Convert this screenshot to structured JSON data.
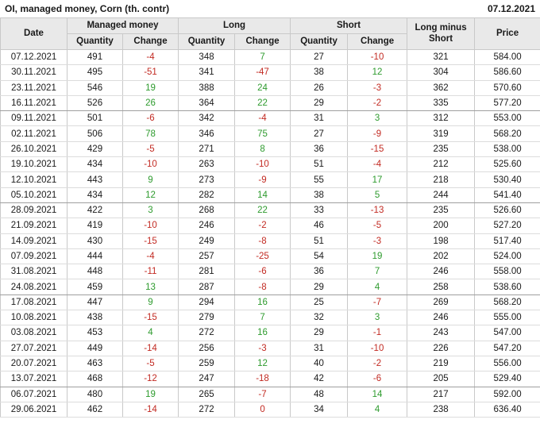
{
  "title": "OI, managed money, Corn (th. contr)",
  "report_date": "07.12.2021",
  "colors": {
    "positive_change": "#2e9b2e",
    "negative_change": "#c22a22",
    "header_background": "#e9e9e9",
    "grid_line": "#c9c9c9",
    "row_line": "#dcdcdc",
    "group_line": "#9f9f9f"
  },
  "table": {
    "header": {
      "date": "Date",
      "managed_money": "Managed money",
      "long": "Long",
      "short": "Short",
      "quantity": "Quantity",
      "change": "Change",
      "long_minus_short": "Long minus Short",
      "price": "Price"
    },
    "group_separators_after": [
      3,
      9,
      15,
      21
    ]
  },
  "chart_data": {
    "type": "table",
    "title": "OI, managed money, Corn (th. contr)",
    "columns": [
      "Date",
      "Managed money Quantity",
      "Managed money Change",
      "Long Quantity",
      "Long Change",
      "Short Quantity",
      "Short Change",
      "Long minus Short",
      "Price"
    ],
    "rows": [
      [
        "07.12.2021",
        "491",
        "-4",
        "348",
        "7",
        "27",
        "-10",
        "321",
        "584.00"
      ],
      [
        "30.11.2021",
        "495",
        "-51",
        "341",
        "-47",
        "38",
        "12",
        "304",
        "586.60"
      ],
      [
        "23.11.2021",
        "546",
        "19",
        "388",
        "24",
        "26",
        "-3",
        "362",
        "570.60"
      ],
      [
        "16.11.2021",
        "526",
        "26",
        "364",
        "22",
        "29",
        "-2",
        "335",
        "577.20"
      ],
      [
        "09.11.2021",
        "501",
        "-6",
        "342",
        "-4",
        "31",
        "3",
        "312",
        "553.00"
      ],
      [
        "02.11.2021",
        "506",
        "78",
        "346",
        "75",
        "27",
        "-9",
        "319",
        "568.20"
      ],
      [
        "26.10.2021",
        "429",
        "-5",
        "271",
        "8",
        "36",
        "-15",
        "235",
        "538.00"
      ],
      [
        "19.10.2021",
        "434",
        "-10",
        "263",
        "-10",
        "51",
        "-4",
        "212",
        "525.60"
      ],
      [
        "12.10.2021",
        "443",
        "9",
        "273",
        "-9",
        "55",
        "17",
        "218",
        "530.40"
      ],
      [
        "05.10.2021",
        "434",
        "12",
        "282",
        "14",
        "38",
        "5",
        "244",
        "541.40"
      ],
      [
        "28.09.2021",
        "422",
        "3",
        "268",
        "22",
        "33",
        "-13",
        "235",
        "526.60"
      ],
      [
        "21.09.2021",
        "419",
        "-10",
        "246",
        "-2",
        "46",
        "-5",
        "200",
        "527.20"
      ],
      [
        "14.09.2021",
        "430",
        "-15",
        "249",
        "-8",
        "51",
        "-3",
        "198",
        "517.40"
      ],
      [
        "07.09.2021",
        "444",
        "-4",
        "257",
        "-25",
        "54",
        "19",
        "202",
        "524.00"
      ],
      [
        "31.08.2021",
        "448",
        "-11",
        "281",
        "-6",
        "36",
        "7",
        "246",
        "558.00"
      ],
      [
        "24.08.2021",
        "459",
        "13",
        "287",
        "-8",
        "29",
        "4",
        "258",
        "538.60"
      ],
      [
        "17.08.2021",
        "447",
        "9",
        "294",
        "16",
        "25",
        "-7",
        "269",
        "568.20"
      ],
      [
        "10.08.2021",
        "438",
        "-15",
        "279",
        "7",
        "32",
        "3",
        "246",
        "555.00"
      ],
      [
        "03.08.2021",
        "453",
        "4",
        "272",
        "16",
        "29",
        "-1",
        "243",
        "547.00"
      ],
      [
        "27.07.2021",
        "449",
        "-14",
        "256",
        "-3",
        "31",
        "-10",
        "226",
        "547.20"
      ],
      [
        "20.07.2021",
        "463",
        "-5",
        "259",
        "12",
        "40",
        "-2",
        "219",
        "556.00"
      ],
      [
        "13.07.2021",
        "468",
        "-12",
        "247",
        "-18",
        "42",
        "-6",
        "205",
        "529.40"
      ],
      [
        "06.07.2021",
        "480",
        "19",
        "265",
        "-7",
        "48",
        "14",
        "217",
        "592.00"
      ],
      [
        "29.06.2021",
        "462",
        "-14",
        "272",
        "0",
        "34",
        "4",
        "238",
        "636.40"
      ]
    ]
  }
}
